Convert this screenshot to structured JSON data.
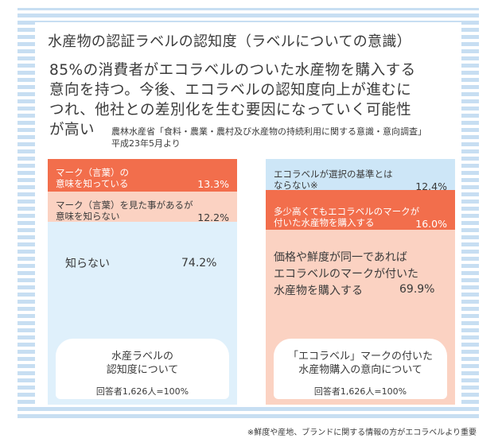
{
  "title": "水産物の認証ラベルの認知度（ラベルについての意識）",
  "lead": [
    "85%の消費者がエコラベルのついた水産物を購入する",
    "意向を持つ。今後、エコラベルの認知度向上が進むに",
    "つれ、他社との差別化を生む要因になっていく可能性",
    "が高い"
  ],
  "source": [
    "農林水産省「食料・農業・農村及び水産物の持続利用に関する意識・意向調査」",
    "平成23年5月より"
  ],
  "footnote": "※鮮度や産地、ブランドに関する情報の方がエコラベルより重要",
  "colors": {
    "orange": "#f26e4c",
    "peach": "#fbd2c2",
    "lightblue": "#dff0fb",
    "bluegray": "#cde6f7"
  },
  "chart_data": [
    {
      "type": "bar",
      "stacked": true,
      "title": "水産ラベルの\n認知度について",
      "note": "回答者1,626人=100%",
      "unit": "%",
      "segments": [
        {
          "label": "マーク（言葉）の\n意味を知っている",
          "value": 13.3,
          "display": "13.3%",
          "color": "#f26e4c"
        },
        {
          "label": "マーク（言葉）を見た事があるが\n意味を知らない",
          "value": 12.2,
          "display": "12.2%",
          "color": "#fbd2c2"
        },
        {
          "label": "知らない",
          "value": 74.2,
          "display": "74.2%",
          "color": "#dff0fb"
        }
      ]
    },
    {
      "type": "bar",
      "stacked": true,
      "title": "「エコラベル」マークの付いた\n水産物購入の意向について",
      "note": "回答者1,626人=100%",
      "unit": "%",
      "segments": [
        {
          "label": "エコラベルが選択の基準とは\nならない※",
          "value": 12.4,
          "display": "12.4%",
          "color": "#cde6f7"
        },
        {
          "label": "多少高くてもエコラベルのマークが\n付いた水産物を購入する",
          "value": 16.0,
          "display": "16.0%",
          "color": "#f26e4c"
        },
        {
          "label": "価格や鮮度が同一であれば\nエコラベルのマークが付いた\n水産物を購入する",
          "value": 69.9,
          "display": "69.9%",
          "color": "#fbd2c2"
        }
      ]
    }
  ]
}
